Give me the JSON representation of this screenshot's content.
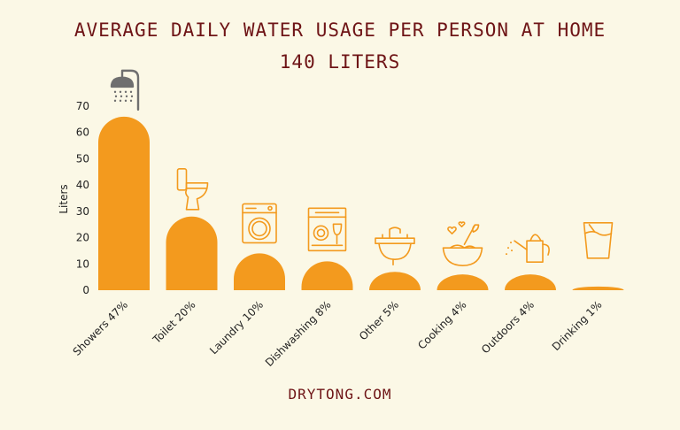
{
  "header": {
    "title": "AVERAGE DAILY WATER USAGE PER PERSON AT HOME",
    "subtitle": "140 LITERS"
  },
  "footer": {
    "site": "DRYTONG.COM"
  },
  "colors": {
    "bar": "#f39a1e",
    "icon": "#f39a1e",
    "shower_icon": "#6f6f6f",
    "title": "#6e1416",
    "background": "#fbf8e6"
  },
  "chart_data": {
    "type": "bar",
    "categories": [
      "Showers 47%",
      "Toilet 20%",
      "Laundry 10%",
      "Dishwashing 8%",
      "Other 5%",
      "Cooking 4%",
      "Outdoors 4%",
      "Drinking 1%"
    ],
    "values": [
      66,
      28,
      14,
      11,
      7,
      6,
      6,
      1.4
    ],
    "icons": [
      "shower-icon",
      "toilet-icon",
      "washing-machine-icon",
      "dishwasher-icon",
      "sink-icon",
      "mixing-bowl-icon",
      "watering-can-icon",
      "glass-icon"
    ],
    "ylabel": "Liters",
    "xlabel": "",
    "yticks": [
      0,
      10,
      20,
      30,
      40,
      50,
      60,
      70
    ],
    "ylim": [
      0,
      70
    ],
    "grid": false,
    "legend": "none"
  }
}
